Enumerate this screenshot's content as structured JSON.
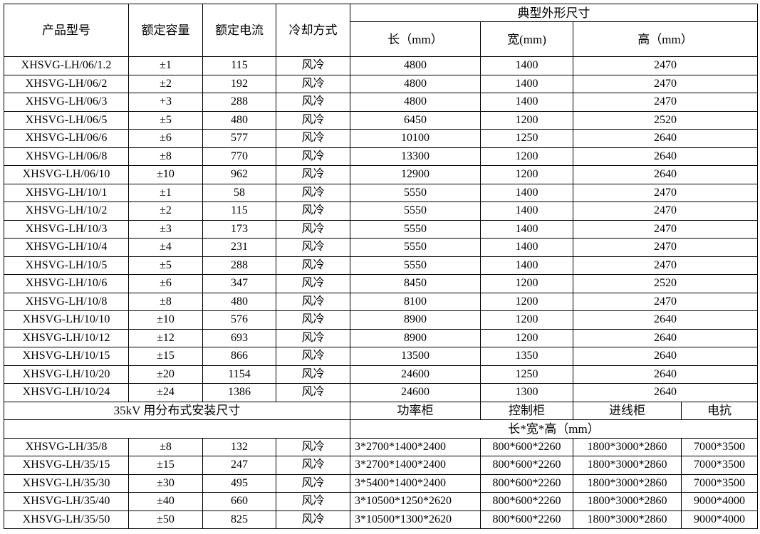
{
  "headers": {
    "model": "产品型号",
    "capacity": "额定容量",
    "current": "额定电流",
    "cooling": "冷却方式",
    "dimensions": "典型外形尺寸",
    "length": "长（mm）",
    "width": "宽(mm)",
    "height": "高（mm）"
  },
  "rows": [
    [
      "XHSVG-LH/06/1.2",
      "±1",
      "115",
      "风冷",
      "4800",
      "1400",
      "2470"
    ],
    [
      "XHSVG-LH/06/2",
      "±2",
      "192",
      "风冷",
      "4800",
      "1400",
      "2470"
    ],
    [
      "XHSVG-LH/06/3",
      "+3",
      "288",
      "风冷",
      "4800",
      "1400",
      "2470"
    ],
    [
      "XHSVG-LH/06/5",
      "±5",
      "480",
      "风冷",
      "6450",
      "1200",
      "2520"
    ],
    [
      "XHSVG-LH/06/6",
      "±6",
      "577",
      "风冷",
      "10100",
      "1250",
      "2640"
    ],
    [
      "XHSVG-LH/06/8",
      "±8",
      "770",
      "风冷",
      "13300",
      "1200",
      "2640"
    ],
    [
      "XHSVG-LH/06/10",
      "±10",
      "962",
      "风冷",
      "12900",
      "1200",
      "2640"
    ],
    [
      "XHSVG-LH/10/1",
      "±1",
      "58",
      "风冷",
      "5550",
      "1400",
      "2470"
    ],
    [
      "XHSVG-LH/10/2",
      "±2",
      "115",
      "风冷",
      "5550",
      "1400",
      "2470"
    ],
    [
      "XHSVG-LH/10/3",
      "±3",
      "173",
      "风冷",
      "5550",
      "1400",
      "2470"
    ],
    [
      "XHSVG-LH/10/4",
      "±4",
      "231",
      "风冷",
      "5550",
      "1400",
      "2470"
    ],
    [
      "XHSVG-LH/10/5",
      "±5",
      "288",
      "风冷",
      "5550",
      "1400",
      "2470"
    ],
    [
      "XHSVG-LH/10/6",
      "±6",
      "347",
      "风冷",
      "8450",
      "1200",
      "2520"
    ],
    [
      "XHSVG-LH/10/8",
      "±8",
      "480",
      "风冷",
      "8100",
      "1200",
      "2470"
    ],
    [
      "XHSVG-LH/10/10",
      "±10",
      "576",
      "风冷",
      "8900",
      "1200",
      "2640"
    ],
    [
      "XHSVG-LH/10/12",
      "±12",
      "693",
      "风冷",
      "8900",
      "1200",
      "2640"
    ],
    [
      "XHSVG-LH/10/15",
      "±15",
      "866",
      "风冷",
      "13500",
      "1350",
      "2640"
    ],
    [
      "XHSVG-LH/10/20",
      "±20",
      "1154",
      "风冷",
      "24600",
      "1250",
      "2640"
    ],
    [
      "XHSVG-LH/10/24",
      "±24",
      "1386",
      "风冷",
      "24600",
      "1300",
      "2640"
    ]
  ],
  "section35": {
    "title": "35kV 用分布式安装尺寸",
    "power_cabinet": "功率柜",
    "control_cabinet": "控制柜",
    "incoming_cabinet": "进线柜",
    "reactor": "电抗",
    "dims_label": "长*宽*高（mm）",
    "rows": [
      [
        "XHSVG-LH/35/8",
        "±8",
        "132",
        "风冷",
        "3*2700*1400*2400",
        "800*600*2260",
        "1800*3000*2860",
        "7000*3500"
      ],
      [
        "XHSVG-LH/35/15",
        "±15",
        "247",
        "风冷",
        "3*2700*1400*2400",
        "800*600*2260",
        "1800*3000*2860",
        "7000*3500"
      ],
      [
        "XHSVG-LH/35/30",
        "±30",
        "495",
        "风冷",
        "3*5400*1400*2400",
        "800*600*2260",
        "1800*3000*2860",
        "7000*3500"
      ],
      [
        "XHSVG-LH/35/40",
        "±40",
        "660",
        "风冷",
        "3*10500*1250*2620",
        "800*600*2260",
        "1800*3000*2860",
        "9000*4000"
      ],
      [
        "XHSVG-LH/35/50",
        "±50",
        "825",
        "风冷",
        "3*10500*1300*2620",
        "800*600*2260",
        "1800*3000*2860",
        "9000*4000"
      ]
    ]
  }
}
